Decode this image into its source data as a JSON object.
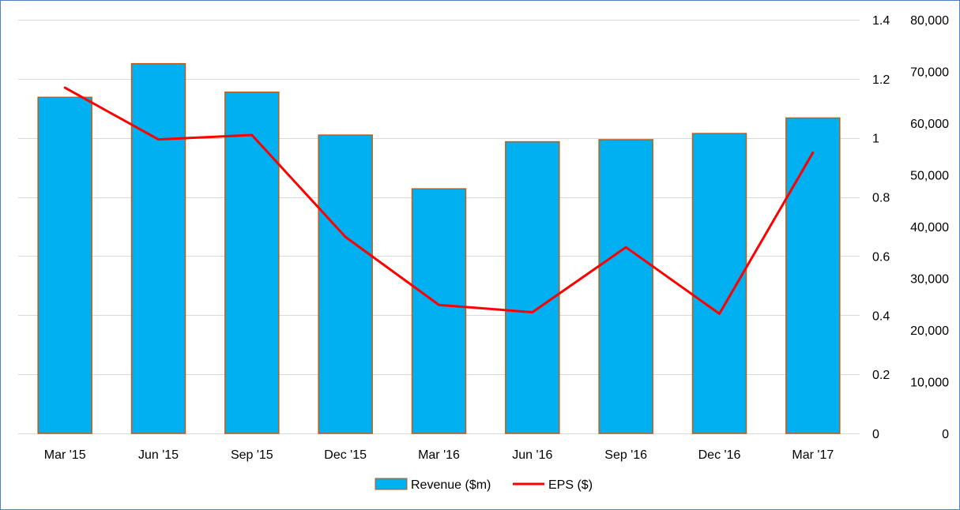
{
  "chart_data": {
    "type": "bar",
    "title": "",
    "xlabel": "",
    "categories": [
      "Mar '15",
      "Jun '15",
      "Sep '15",
      "Dec '15",
      "Mar '16",
      "Jun '16",
      "Sep '16",
      "Dec '16",
      "Mar '17"
    ],
    "series": [
      {
        "name": "Revenue ($m)",
        "type": "bar",
        "axis": "right",
        "color": "#00b0f0",
        "edge_color": "#c55a11",
        "values": [
          65000,
          71500,
          66000,
          57700,
          47300,
          56400,
          56800,
          58000,
          61000
        ]
      },
      {
        "name": "EPS ($)",
        "type": "line",
        "axis": "left",
        "color": "#ff0000",
        "values": [
          1.17,
          0.995,
          1.01,
          0.665,
          0.435,
          0.41,
          0.63,
          0.405,
          0.95
        ]
      }
    ],
    "y_left": {
      "min": 0,
      "max": 1.4,
      "step": 0.2,
      "tick_labels": [
        "0",
        "0.2",
        "0.4",
        "0.6",
        "0.8",
        "1",
        "1.2",
        "1.4"
      ]
    },
    "y_right": {
      "min": 0,
      "max": 80000,
      "step": 10000,
      "tick_labels": [
        "0",
        "10,000",
        "20,000",
        "30,000",
        "40,000",
        "50,000",
        "60,000",
        "70,000",
        "80,000"
      ]
    },
    "grid": true,
    "legend_position": "bottom"
  },
  "colors": {
    "gridline": "#d9d9d9",
    "border": "#4f81bd"
  }
}
